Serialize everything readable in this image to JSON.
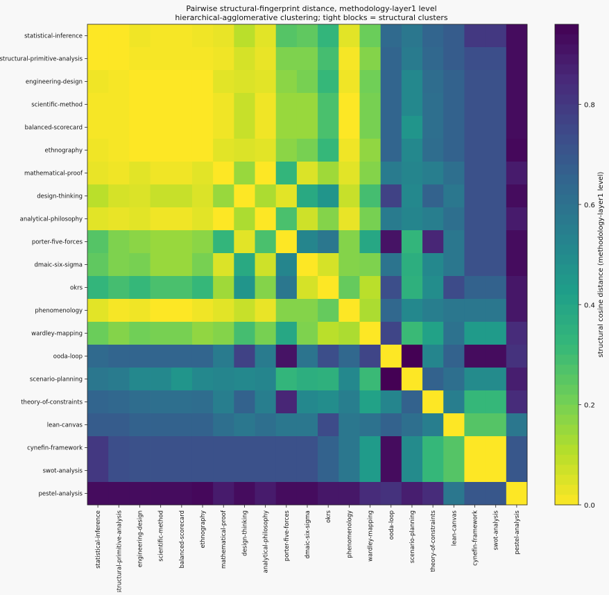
{
  "chart_data": {
    "type": "heatmap",
    "title": "Pairwise structural-fingerprint distance, methodology-layer1 level",
    "subtitle": "hierarchical-agglomerative clustering; tight blocks = structural clusters",
    "labels": [
      "statistical-inference",
      "structural-primitive-analysis",
      "engineering-design",
      "scientific-method",
      "balanced-scorecard",
      "ethnography",
      "mathematical-proof",
      "design-thinking",
      "analytical-philosophy",
      "porter-five-forces",
      "dmaic-six-sigma",
      "okrs",
      "phenomenology",
      "wardley-mapping",
      "ooda-loop",
      "scenario-planning",
      "theory-of-constraints",
      "lean-canvas",
      "cynefin-framework",
      "swot-analysis",
      "pestel-analysis"
    ],
    "values": [
      [
        0.0,
        0.0,
        0.02,
        0.01,
        0.01,
        0.02,
        0.03,
        0.1,
        0.04,
        0.26,
        0.24,
        0.33,
        0.04,
        0.22,
        0.63,
        0.58,
        0.65,
        0.68,
        0.8,
        0.8,
        0.93
      ],
      [
        0.0,
        0.0,
        0.01,
        0.01,
        0.01,
        0.01,
        0.02,
        0.06,
        0.03,
        0.19,
        0.19,
        0.29,
        0.01,
        0.18,
        0.65,
        0.56,
        0.64,
        0.68,
        0.73,
        0.73,
        0.93
      ],
      [
        0.02,
        0.01,
        0.0,
        0.0,
        0.0,
        0.0,
        0.04,
        0.05,
        0.04,
        0.17,
        0.2,
        0.32,
        0.02,
        0.21,
        0.65,
        0.51,
        0.62,
        0.66,
        0.72,
        0.72,
        0.93
      ],
      [
        0.01,
        0.01,
        0.0,
        0.0,
        0.0,
        0.0,
        0.02,
        0.08,
        0.02,
        0.15,
        0.15,
        0.28,
        0.0,
        0.2,
        0.65,
        0.51,
        0.61,
        0.66,
        0.72,
        0.72,
        0.93
      ],
      [
        0.01,
        0.01,
        0.0,
        0.0,
        0.0,
        0.0,
        0.02,
        0.08,
        0.02,
        0.15,
        0.15,
        0.28,
        0.0,
        0.2,
        0.65,
        0.46,
        0.61,
        0.66,
        0.72,
        0.72,
        0.93
      ],
      [
        0.02,
        0.01,
        0.0,
        0.0,
        0.0,
        0.0,
        0.04,
        0.05,
        0.04,
        0.17,
        0.2,
        0.32,
        0.02,
        0.16,
        0.65,
        0.51,
        0.62,
        0.66,
        0.72,
        0.72,
        0.94
      ],
      [
        0.03,
        0.02,
        0.04,
        0.02,
        0.02,
        0.04,
        0.0,
        0.15,
        0.0,
        0.33,
        0.05,
        0.14,
        0.04,
        0.18,
        0.56,
        0.52,
        0.55,
        0.61,
        0.72,
        0.72,
        0.89
      ],
      [
        0.1,
        0.06,
        0.05,
        0.08,
        0.08,
        0.05,
        0.15,
        0.0,
        0.12,
        0.04,
        0.38,
        0.46,
        0.08,
        0.29,
        0.77,
        0.51,
        0.66,
        0.58,
        0.72,
        0.72,
        0.93
      ],
      [
        0.04,
        0.03,
        0.04,
        0.02,
        0.02,
        0.04,
        0.0,
        0.12,
        0.0,
        0.28,
        0.07,
        0.18,
        0.03,
        0.2,
        0.56,
        0.52,
        0.55,
        0.61,
        0.72,
        0.72,
        0.89
      ],
      [
        0.26,
        0.19,
        0.17,
        0.15,
        0.15,
        0.17,
        0.33,
        0.04,
        0.28,
        0.0,
        0.52,
        0.58,
        0.18,
        0.39,
        0.91,
        0.33,
        0.86,
        0.58,
        0.72,
        0.72,
        0.93
      ],
      [
        0.24,
        0.19,
        0.2,
        0.15,
        0.15,
        0.2,
        0.05,
        0.38,
        0.07,
        0.52,
        0.0,
        0.06,
        0.18,
        0.19,
        0.59,
        0.36,
        0.51,
        0.58,
        0.72,
        0.72,
        0.93
      ],
      [
        0.33,
        0.29,
        0.32,
        0.28,
        0.28,
        0.32,
        0.14,
        0.46,
        0.18,
        0.58,
        0.06,
        0.0,
        0.23,
        0.1,
        0.73,
        0.35,
        0.49,
        0.74,
        0.66,
        0.66,
        0.9
      ],
      [
        0.04,
        0.01,
        0.02,
        0.0,
        0.0,
        0.02,
        0.04,
        0.08,
        0.03,
        0.18,
        0.18,
        0.23,
        0.0,
        0.12,
        0.64,
        0.51,
        0.55,
        0.58,
        0.58,
        0.58,
        0.9
      ],
      [
        0.22,
        0.18,
        0.21,
        0.2,
        0.2,
        0.16,
        0.18,
        0.29,
        0.2,
        0.39,
        0.19,
        0.1,
        0.12,
        0.0,
        0.76,
        0.31,
        0.41,
        0.6,
        0.44,
        0.44,
        0.84
      ],
      [
        0.63,
        0.65,
        0.65,
        0.65,
        0.65,
        0.65,
        0.56,
        0.77,
        0.56,
        0.91,
        0.59,
        0.73,
        0.64,
        0.76,
        0.0,
        0.96,
        0.52,
        0.66,
        0.93,
        0.93,
        0.82
      ],
      [
        0.58,
        0.56,
        0.51,
        0.51,
        0.46,
        0.51,
        0.52,
        0.51,
        0.52,
        0.33,
        0.36,
        0.35,
        0.51,
        0.31,
        0.96,
        0.0,
        0.66,
        0.61,
        0.5,
        0.5,
        0.88
      ],
      [
        0.65,
        0.64,
        0.62,
        0.61,
        0.61,
        0.62,
        0.55,
        0.66,
        0.55,
        0.86,
        0.51,
        0.49,
        0.55,
        0.41,
        0.52,
        0.66,
        0.0,
        0.55,
        0.32,
        0.32,
        0.84
      ],
      [
        0.68,
        0.68,
        0.66,
        0.66,
        0.66,
        0.66,
        0.61,
        0.58,
        0.61,
        0.58,
        0.58,
        0.74,
        0.58,
        0.6,
        0.66,
        0.61,
        0.55,
        0.0,
        0.26,
        0.26,
        0.58
      ],
      [
        0.8,
        0.73,
        0.72,
        0.72,
        0.72,
        0.72,
        0.72,
        0.72,
        0.72,
        0.72,
        0.72,
        0.66,
        0.58,
        0.44,
        0.93,
        0.5,
        0.32,
        0.26,
        0.0,
        0.0,
        0.7
      ],
      [
        0.8,
        0.73,
        0.72,
        0.72,
        0.72,
        0.72,
        0.72,
        0.72,
        0.72,
        0.72,
        0.72,
        0.66,
        0.58,
        0.44,
        0.93,
        0.5,
        0.32,
        0.26,
        0.0,
        0.0,
        0.7
      ],
      [
        0.93,
        0.93,
        0.93,
        0.93,
        0.93,
        0.94,
        0.89,
        0.93,
        0.89,
        0.93,
        0.93,
        0.9,
        0.9,
        0.84,
        0.82,
        0.88,
        0.84,
        0.58,
        0.7,
        0.7,
        0.0
      ]
    ],
    "colorbar": {
      "label": "structural cosine distance (methodology-layer1 level)",
      "min": 0.0,
      "max": 0.96,
      "ticks": [
        0.0,
        0.2,
        0.4,
        0.6,
        0.8
      ],
      "tick_labels": [
        "0.0",
        "0.2",
        "0.4",
        "0.6",
        "0.8"
      ],
      "colormap": "viridis_r"
    },
    "grid": false
  }
}
